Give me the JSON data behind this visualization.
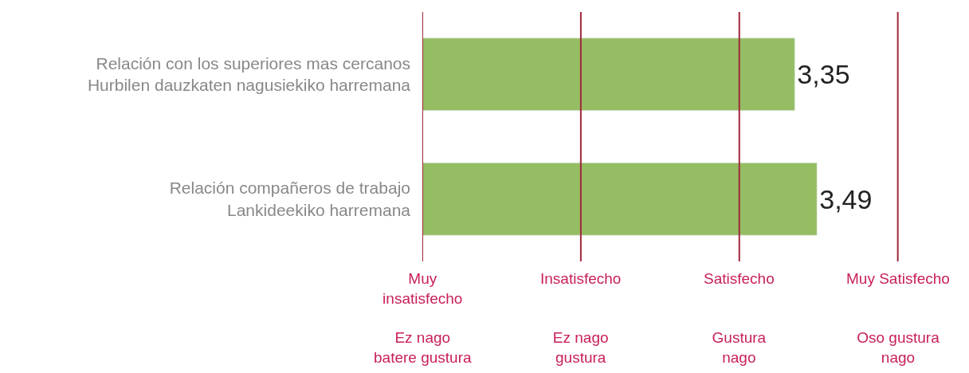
{
  "chart_data": {
    "type": "bar",
    "orientation": "horizontal",
    "categories": [
      "Relación con los superiores mas cercanos\nHurbilen dauzkaten nagusiekiko harremana",
      "Relación compañeros de trabajo\nLankideekiko harremana"
    ],
    "values": [
      3.35,
      3.49
    ],
    "value_labels": [
      "3,35",
      "3,49"
    ],
    "color": "#95bd63",
    "ref_lines": [
      {
        "axis": "x",
        "value": 1,
        "label": "Muy\ninsatisfecho\n\nEz nago\nbatere gustura",
        "color": "#a0283c"
      },
      {
        "axis": "x",
        "value": 2,
        "label": "Insatisfecho\n\n\nEz nago\ngustura",
        "color": "#a0283c"
      },
      {
        "axis": "x",
        "value": 3,
        "label": "Satisfecho\n\n\nGustura\nnago",
        "color": "#a0283c"
      },
      {
        "axis": "x",
        "value": 4,
        "label": "Muy Satisfecho\n\n\nOso gustura\nnago",
        "color": "#a0283c"
      }
    ]
  }
}
